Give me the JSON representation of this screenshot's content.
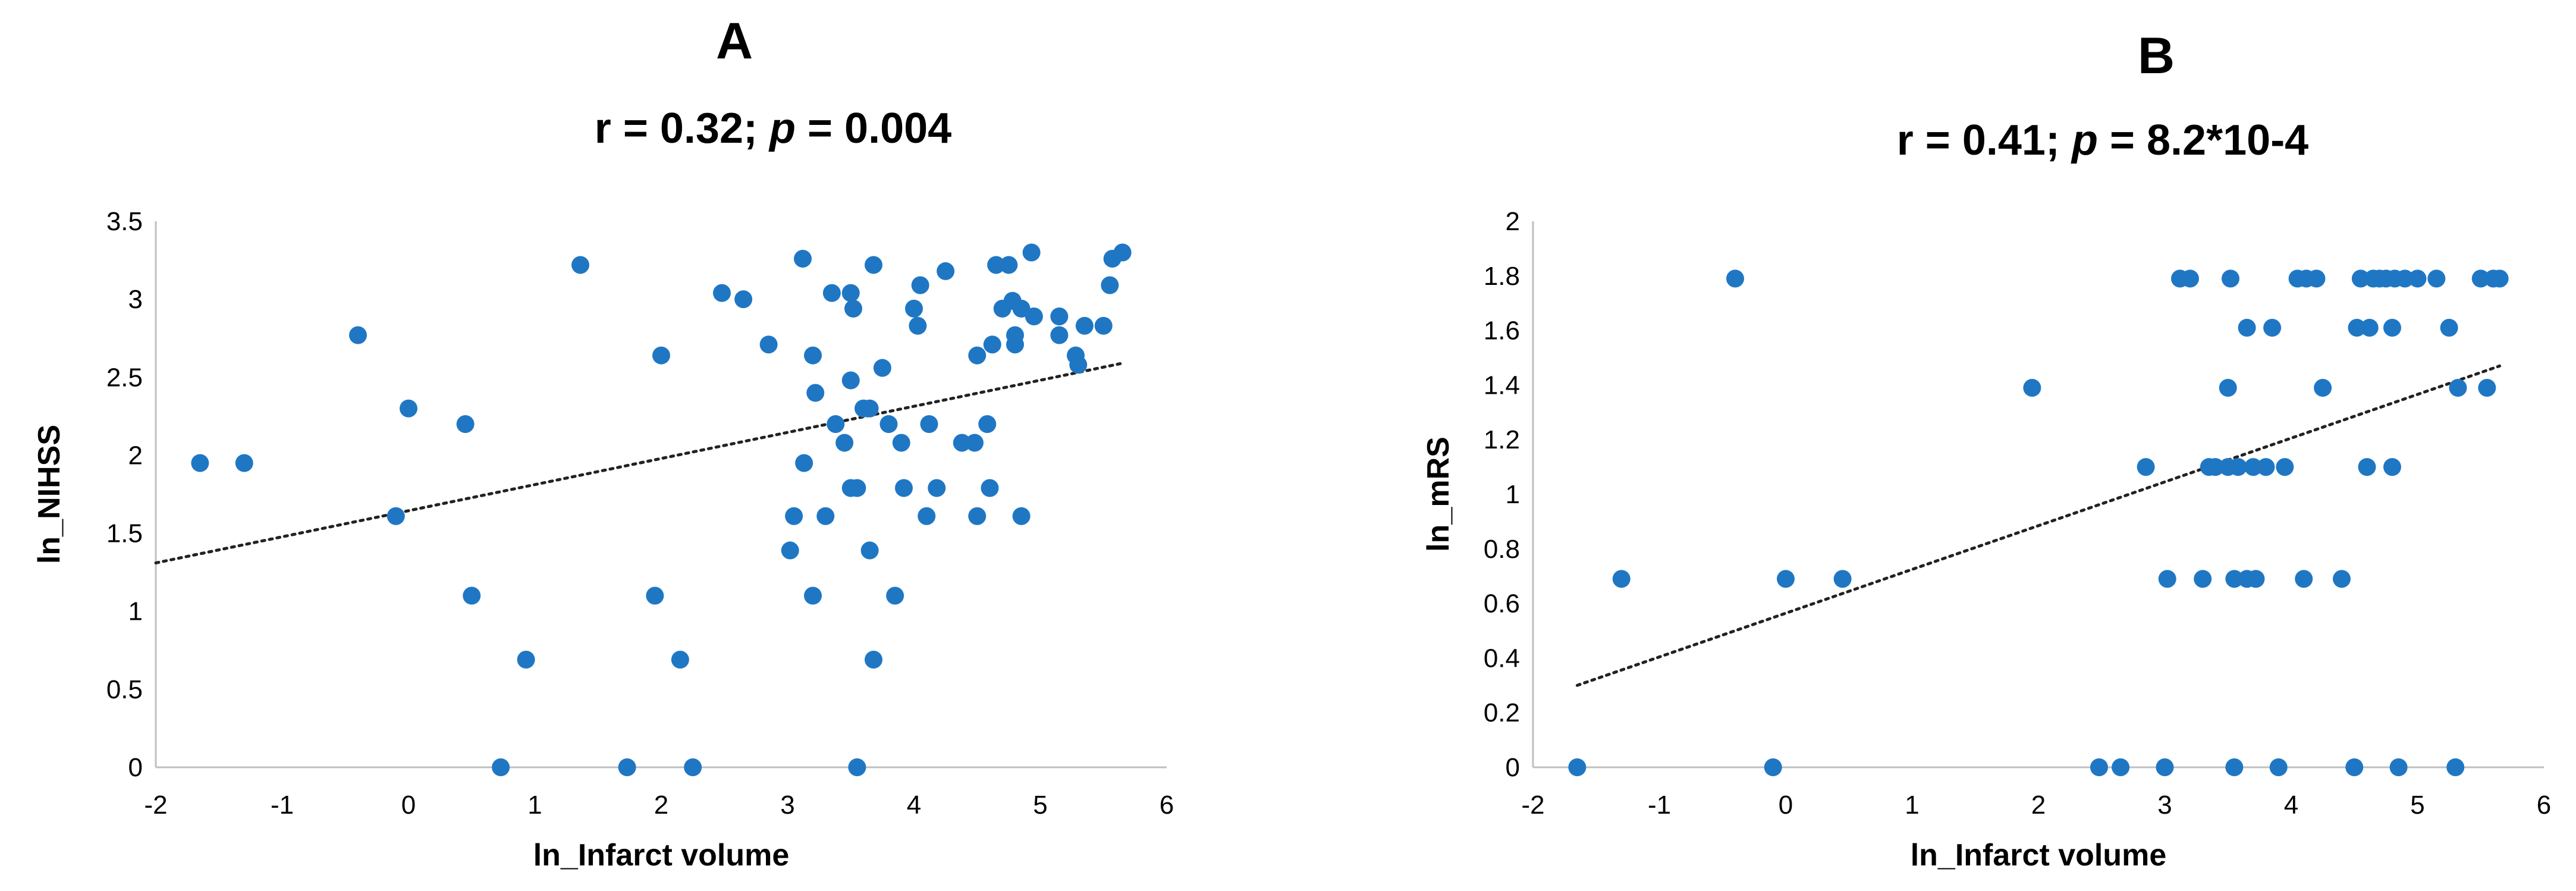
{
  "chart_data": [
    {
      "type": "scatter",
      "panel_label": "A",
      "stats": {
        "r_text": "r = 0.32; ",
        "p_symbol": "p",
        "p_text": " = 0.004"
      },
      "xlabel": "ln_Infarct volume",
      "ylabel": "ln_NIHSS",
      "xlim": [
        -2,
        6
      ],
      "ylim": [
        0,
        3.5
      ],
      "x_ticks": [
        "-2",
        "-1",
        "0",
        "1",
        "2",
        "3",
        "4",
        "5",
        "6"
      ],
      "y_ticks": [
        "0",
        "0.5",
        "1",
        "1.5",
        "2",
        "2.5",
        "3",
        "3.5"
      ],
      "grid": false,
      "marker_color": "#1f77c4",
      "trendline": {
        "style": "dotted",
        "x": [
          -2,
          5.65
        ],
        "y": [
          1.31,
          2.59
        ]
      },
      "points": [
        [
          -1.65,
          1.95
        ],
        [
          -1.3,
          1.95
        ],
        [
          -0.4,
          2.77
        ],
        [
          -0.1,
          1.61
        ],
        [
          0.0,
          2.3
        ],
        [
          0.45,
          2.2
        ],
        [
          0.5,
          1.1
        ],
        [
          0.73,
          0.0
        ],
        [
          0.93,
          0.69
        ],
        [
          1.36,
          3.22
        ],
        [
          1.73,
          0.0
        ],
        [
          1.95,
          1.1
        ],
        [
          2.0,
          2.64
        ],
        [
          2.15,
          0.69
        ],
        [
          2.25,
          0.0
        ],
        [
          2.48,
          3.04
        ],
        [
          2.65,
          3.0
        ],
        [
          2.85,
          2.71
        ],
        [
          3.02,
          1.39
        ],
        [
          3.05,
          1.61
        ],
        [
          3.12,
          3.26
        ],
        [
          3.13,
          1.95
        ],
        [
          3.2,
          1.1
        ],
        [
          3.2,
          2.64
        ],
        [
          3.22,
          2.4
        ],
        [
          3.3,
          1.61
        ],
        [
          3.35,
          3.04
        ],
        [
          3.38,
          2.2
        ],
        [
          3.45,
          2.08
        ],
        [
          3.5,
          2.48
        ],
        [
          3.5,
          3.04
        ],
        [
          3.52,
          2.94
        ],
        [
          3.5,
          1.79
        ],
        [
          3.55,
          1.79
        ],
        [
          3.55,
          0.0
        ],
        [
          3.6,
          2.3
        ],
        [
          3.65,
          1.39
        ],
        [
          3.65,
          2.3
        ],
        [
          3.68,
          0.69
        ],
        [
          3.68,
          3.22
        ],
        [
          3.75,
          2.56
        ],
        [
          3.8,
          2.2
        ],
        [
          3.85,
          1.1
        ],
        [
          3.9,
          2.08
        ],
        [
          3.92,
          1.79
        ],
        [
          4.0,
          2.94
        ],
        [
          4.03,
          2.83
        ],
        [
          4.05,
          3.09
        ],
        [
          4.1,
          1.61
        ],
        [
          4.12,
          2.2
        ],
        [
          4.18,
          1.79
        ],
        [
          4.25,
          3.18
        ],
        [
          4.38,
          2.08
        ],
        [
          4.48,
          2.08
        ],
        [
          4.5,
          1.61
        ],
        [
          4.5,
          2.64
        ],
        [
          4.58,
          2.2
        ],
        [
          4.6,
          1.79
        ],
        [
          4.62,
          2.71
        ],
        [
          4.65,
          3.22
        ],
        [
          4.7,
          2.94
        ],
        [
          4.75,
          3.22
        ],
        [
          4.78,
          2.99
        ],
        [
          4.8,
          2.77
        ],
        [
          4.8,
          2.71
        ],
        [
          4.85,
          1.61
        ],
        [
          4.85,
          2.94
        ],
        [
          4.93,
          3.3
        ],
        [
          4.95,
          2.89
        ],
        [
          5.15,
          2.89
        ],
        [
          5.15,
          2.77
        ],
        [
          5.28,
          2.64
        ],
        [
          5.3,
          2.58
        ],
        [
          5.35,
          2.83
        ],
        [
          5.5,
          2.83
        ],
        [
          5.55,
          3.09
        ],
        [
          5.57,
          3.26
        ],
        [
          5.65,
          3.3
        ]
      ]
    },
    {
      "type": "scatter",
      "panel_label": "B",
      "stats": {
        "r_text": "r = 0.41; ",
        "p_symbol": "p",
        "p_text": " = 8.2*10-4"
      },
      "xlabel": "ln_Infarct volume",
      "ylabel": "ln_mRS",
      "xlim": [
        -2,
        6
      ],
      "ylim": [
        0,
        2
      ],
      "x_ticks": [
        "-2",
        "-1",
        "0",
        "1",
        "2",
        "3",
        "4",
        "5",
        "6"
      ],
      "y_ticks": [
        "0",
        "0.2",
        "0.4",
        "0.6",
        "0.8",
        "1",
        "1.2",
        "1.4",
        "1.6",
        "1.8",
        "2"
      ],
      "grid": false,
      "marker_color": "#1f77c4",
      "trendline": {
        "style": "dotted",
        "x": [
          -1.65,
          5.65
        ],
        "y": [
          0.3,
          1.47
        ]
      },
      "points": [
        [
          -1.65,
          0.0
        ],
        [
          -1.3,
          0.69
        ],
        [
          -0.4,
          1.79
        ],
        [
          -0.1,
          0.0
        ],
        [
          0.0,
          0.69
        ],
        [
          0.45,
          0.69
        ],
        [
          1.95,
          1.39
        ],
        [
          2.48,
          0.0
        ],
        [
          2.65,
          0.0
        ],
        [
          2.85,
          1.1
        ],
        [
          3.0,
          0.0
        ],
        [
          3.02,
          0.69
        ],
        [
          3.12,
          1.79
        ],
        [
          3.2,
          1.79
        ],
        [
          3.3,
          0.69
        ],
        [
          3.35,
          1.1
        ],
        [
          3.4,
          1.1
        ],
        [
          3.5,
          1.1
        ],
        [
          3.5,
          1.39
        ],
        [
          3.52,
          1.79
        ],
        [
          3.55,
          0.69
        ],
        [
          3.55,
          0.0
        ],
        [
          3.58,
          1.1
        ],
        [
          3.65,
          0.69
        ],
        [
          3.65,
          1.61
        ],
        [
          3.7,
          1.1
        ],
        [
          3.72,
          0.69
        ],
        [
          3.8,
          1.1
        ],
        [
          3.85,
          1.61
        ],
        [
          3.9,
          0.0
        ],
        [
          3.95,
          1.1
        ],
        [
          4.05,
          1.79
        ],
        [
          4.1,
          0.69
        ],
        [
          4.12,
          1.79
        ],
        [
          4.2,
          1.79
        ],
        [
          4.25,
          1.39
        ],
        [
          4.4,
          0.69
        ],
        [
          4.5,
          0.0
        ],
        [
          4.52,
          1.61
        ],
        [
          4.55,
          1.79
        ],
        [
          4.6,
          1.1
        ],
        [
          4.62,
          1.61
        ],
        [
          4.65,
          1.79
        ],
        [
          4.7,
          1.79
        ],
        [
          4.75,
          1.79
        ],
        [
          4.8,
          1.1
        ],
        [
          4.8,
          1.61
        ],
        [
          4.82,
          1.79
        ],
        [
          4.85,
          0.0
        ],
        [
          4.9,
          1.79
        ],
        [
          5.0,
          1.79
        ],
        [
          5.15,
          1.79
        ],
        [
          5.25,
          1.61
        ],
        [
          5.3,
          0.0
        ],
        [
          5.32,
          1.39
        ],
        [
          5.5,
          1.79
        ],
        [
          5.55,
          1.39
        ],
        [
          5.6,
          1.79
        ],
        [
          5.65,
          1.79
        ]
      ]
    }
  ]
}
